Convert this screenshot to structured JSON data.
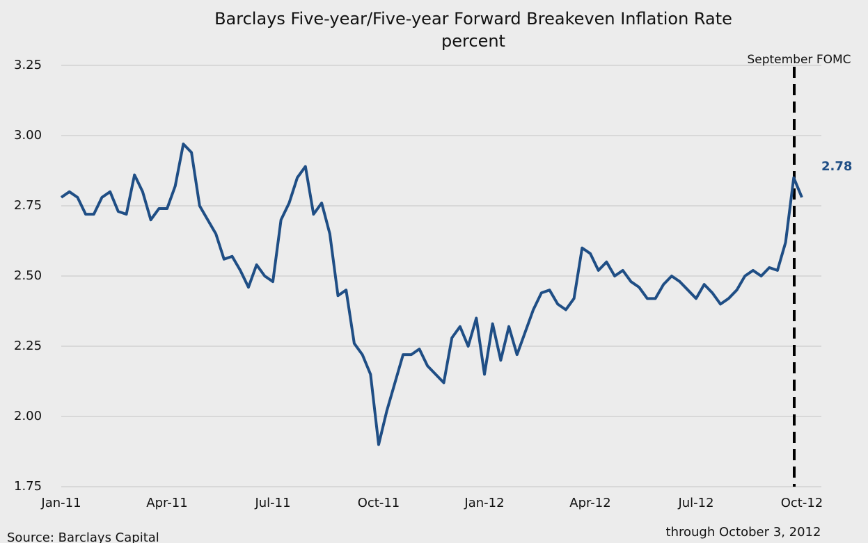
{
  "chart_data": {
    "type": "line",
    "title": "Barclays Five-year/Five-year Forward Breakeven Inflation Rate",
    "subtitle": "percent",
    "categories": [
      "Jan-11",
      null,
      null,
      null,
      null,
      null,
      null,
      null,
      null,
      null,
      null,
      null,
      null,
      "Apr-11",
      null,
      null,
      null,
      null,
      null,
      null,
      null,
      null,
      null,
      null,
      null,
      null,
      "Jul-11",
      null,
      null,
      null,
      null,
      null,
      null,
      null,
      null,
      null,
      null,
      null,
      null,
      "Oct-11",
      null,
      null,
      null,
      null,
      null,
      null,
      null,
      null,
      null,
      null,
      null,
      null,
      "Jan-12",
      null,
      null,
      null,
      null,
      null,
      null,
      null,
      null,
      null,
      null,
      null,
      null,
      "Apr-12",
      null,
      null,
      null,
      null,
      null,
      null,
      null,
      null,
      null,
      null,
      null,
      null,
      "Jul-12",
      null,
      null,
      null,
      null,
      null,
      null,
      null,
      null,
      null,
      null,
      null,
      null,
      "Oct-12"
    ],
    "series": [
      {
        "name": "Five-year/Five-year Forward Breakeven",
        "color": "#1f4e85",
        "values": [
          2.78,
          2.8,
          2.78,
          2.72,
          2.72,
          2.78,
          2.8,
          2.73,
          2.72,
          2.86,
          2.8,
          2.7,
          2.74,
          2.74,
          2.82,
          2.97,
          2.94,
          2.75,
          2.7,
          2.65,
          2.56,
          2.57,
          2.52,
          2.46,
          2.54,
          2.5,
          2.48,
          2.7,
          2.76,
          2.85,
          2.89,
          2.72,
          2.76,
          2.65,
          2.43,
          2.45,
          2.26,
          2.22,
          2.15,
          1.9,
          2.02,
          2.12,
          2.22,
          2.22,
          2.24,
          2.18,
          2.15,
          2.12,
          2.28,
          2.32,
          2.25,
          2.35,
          2.15,
          2.33,
          2.2,
          2.32,
          2.22,
          2.3,
          2.38,
          2.44,
          2.45,
          2.4,
          2.38,
          2.42,
          2.6,
          2.58,
          2.52,
          2.55,
          2.5,
          2.52,
          2.48,
          2.46,
          2.42,
          2.42,
          2.47,
          2.5,
          2.48,
          2.45,
          2.42,
          2.47,
          2.44,
          2.4,
          2.42,
          2.45,
          2.5,
          2.52,
          2.5,
          2.53,
          2.52,
          2.62,
          2.85,
          2.78
        ]
      }
    ],
    "last_value_label": "2.78",
    "ylim": [
      1.75,
      3.25
    ],
    "yticks": [
      1.75,
      {
        "value": 2,
        "label": "2.00"
      },
      2.25,
      {
        "value": 2.5,
        "label": "2.50"
      },
      2.75,
      {
        "value": 3,
        "label": "3.00"
      },
      3.25
    ],
    "grid": true,
    "annotation": "September FOMC",
    "note": "through October 3, 2012",
    "source": "Source: Barclays Capital"
  }
}
